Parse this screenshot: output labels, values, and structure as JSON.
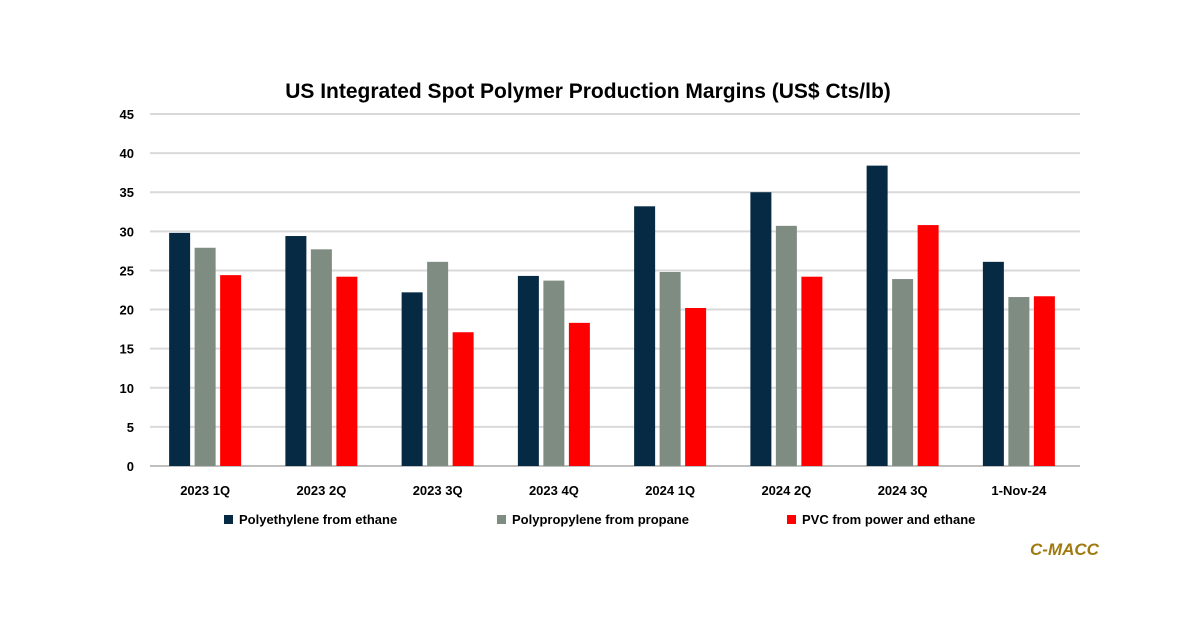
{
  "chart_data": {
    "type": "bar",
    "title": "US Integrated Spot Polymer Production Margins (US$ Cts/lb)",
    "xlabel": "",
    "ylabel": "",
    "ylim": [
      0,
      45
    ],
    "yticks": [
      0,
      5,
      10,
      15,
      20,
      25,
      30,
      35,
      40,
      45
    ],
    "grid": true,
    "legend_position": "bottom",
    "categories": [
      "2023 1Q",
      "2023 2Q",
      "2023 3Q",
      "2023 4Q",
      "2024 1Q",
      "2024 2Q",
      "2024 3Q",
      "1-Nov-24"
    ],
    "series": [
      {
        "name": "Polyethylene from ethane",
        "color": "#062a44",
        "values": [
          29.8,
          29.4,
          22.2,
          24.3,
          33.2,
          35.0,
          38.4,
          26.1
        ]
      },
      {
        "name": "Polypropylene from propane",
        "color": "#7f8c82",
        "values": [
          27.9,
          27.7,
          26.1,
          23.7,
          24.8,
          30.7,
          23.9,
          21.6
        ]
      },
      {
        "name": "PVC from power and ethane",
        "color": "#ff0000",
        "values": [
          24.4,
          24.2,
          17.1,
          18.3,
          20.2,
          24.2,
          30.8,
          21.7
        ]
      }
    ]
  },
  "brand": "C-MACC"
}
